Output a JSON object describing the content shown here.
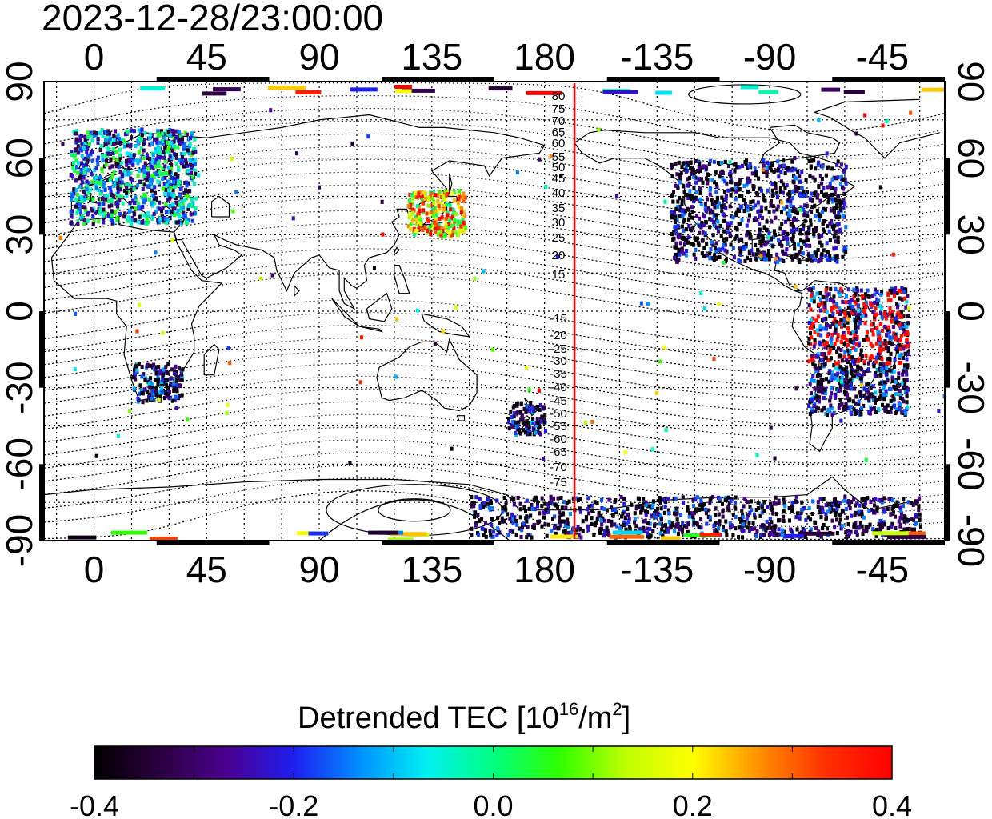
{
  "title": "2023-12-28/23:00:00",
  "top_axis_labels": [
    "0",
    "45",
    "90",
    "135",
    "180",
    "-135",
    "-90",
    "-45"
  ],
  "bottom_axis_labels": [
    "0",
    "45",
    "90",
    "135",
    "180",
    "-135",
    "-90",
    "-45"
  ],
  "left_axis_labels": [
    "90",
    "60",
    "30",
    "0",
    "-30",
    "-60",
    "-90"
  ],
  "right_axis_labels": [
    "90",
    "60",
    "30",
    "0",
    "-30",
    "-60",
    "-90"
  ],
  "magnetic_lat_labels": [
    "80",
    "75",
    "70",
    "65",
    "60",
    "55",
    "50",
    "45",
    "40",
    "35",
    "30",
    "25",
    "20",
    "15",
    "-15",
    "-20",
    "-25",
    "-30",
    "-35",
    "-40",
    "-45",
    "-50",
    "-55",
    "-60",
    "-65",
    "-70",
    "-75"
  ],
  "colorbar": {
    "title_main": "Detrended TEC  [10",
    "title_sup": "16",
    "title_mid": "/m",
    "title_sup2": "2",
    "title_end": "]",
    "ticks": [
      "-0.4",
      "-0.2",
      "0.0",
      "0.2",
      "0.4"
    ],
    "min": -0.4,
    "max": 0.4,
    "stops": [
      "#000000",
      "#2b0040",
      "#4b0090",
      "#1e1ef0",
      "#0090ff",
      "#00f0f0",
      "#00ff80",
      "#30ff00",
      "#c0ff00",
      "#ffff00",
      "#ff9000",
      "#ff3000",
      "#ff0000"
    ]
  },
  "map_data": {
    "projection": "equirectangular",
    "lon_range": [
      -20,
      340
    ],
    "lat_range": [
      -90,
      90
    ],
    "grid_lon_step": 15,
    "grid_lat_step": 15,
    "marker_line_longitude": -168,
    "marker_line_color": "#ff0000",
    "regions": [
      {
        "name": "Europe",
        "lon": [
          -10,
          40
        ],
        "lat": [
          35,
          72
        ],
        "level": -0.15
      },
      {
        "name": "Japan-Korea",
        "lon": [
          125,
          148
        ],
        "lat": [
          30,
          48
        ],
        "level": 0.2
      },
      {
        "name": "North America",
        "lon": [
          -130,
          -60
        ],
        "lat": [
          20,
          60
        ],
        "level": -0.35
      },
      {
        "name": "South America",
        "lon": [
          -75,
          -35
        ],
        "lat": [
          -40,
          10
        ],
        "level": -0.3
      },
      {
        "name": "Southern Africa",
        "lon": [
          15,
          35
        ],
        "lat": [
          -35,
          -20
        ],
        "level": -0.3
      },
      {
        "name": "New Zealand",
        "lon": [
          165,
          180
        ],
        "lat": [
          -48,
          -35
        ],
        "level": -0.3
      },
      {
        "name": "Antarctica",
        "lon": [
          150,
          330
        ],
        "lat": [
          -88,
          -72
        ],
        "level": -0.35
      }
    ]
  }
}
